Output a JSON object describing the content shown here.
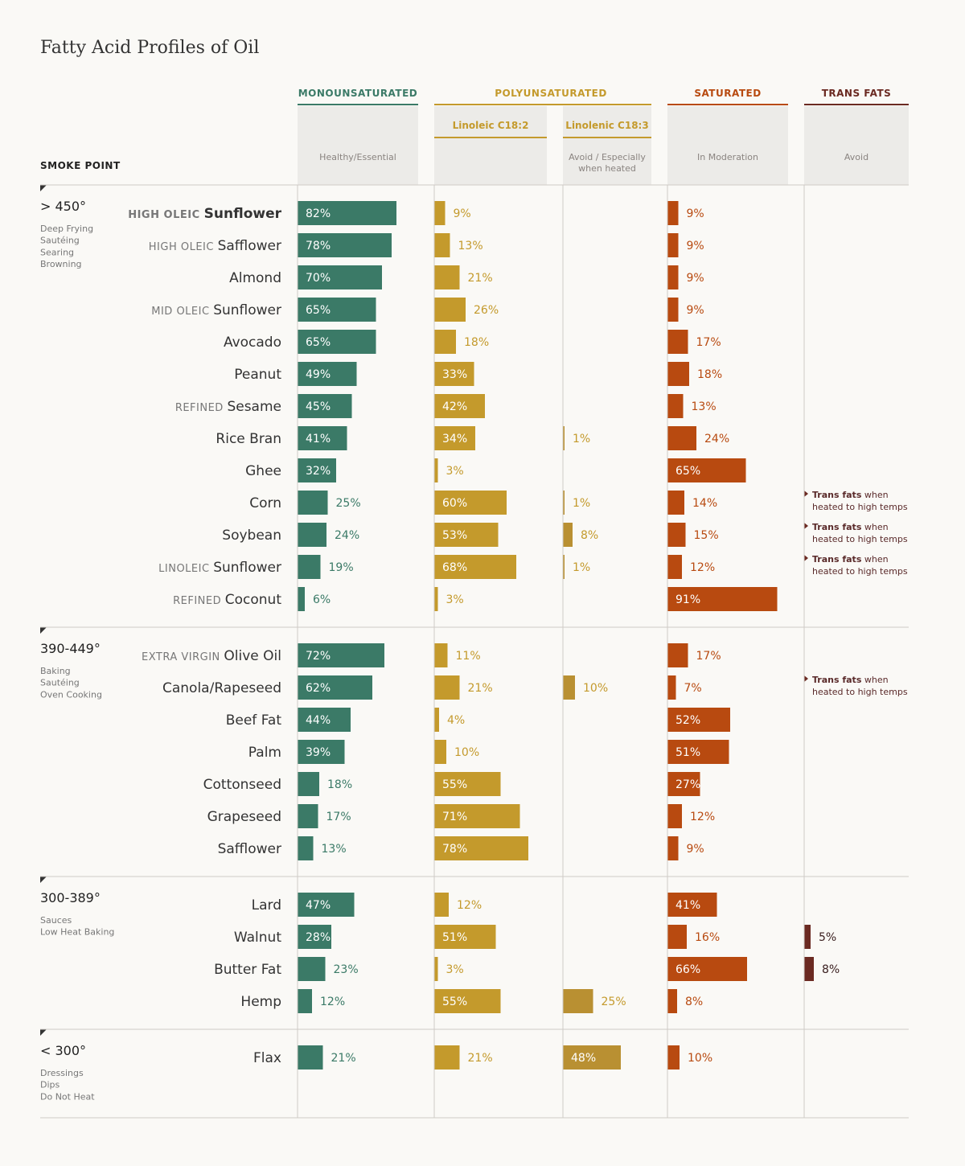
{
  "title": "Fatty Acid Profiles of Oil",
  "smoke_point_label": "SMOKE POINT",
  "columns": [
    {
      "key": "mono",
      "label": "MONOUNSATURATED",
      "color": "#3b7a67",
      "note": "Healthy/Essential"
    },
    {
      "key": "poly",
      "label": "POLYUNSATURATED",
      "color": "#c49a2c"
    },
    {
      "key": "sat",
      "label": "SATURATED",
      "color": "#b84a10",
      "note": "In Moderation"
    },
    {
      "key": "trans",
      "label": "TRANS FATS",
      "color": "#6b2a22",
      "note": "Avoid"
    }
  ],
  "subcolumns": [
    {
      "key": "linoleic",
      "label": "Linoleic C18:2",
      "color": "#c49a2c",
      "note": ""
    },
    {
      "key": "linolenic",
      "label": "Linolenic C18:3",
      "color": "#b99032",
      "note": "Avoid / Especially when heated"
    }
  ],
  "trans_note": {
    "bold": "Trans fats",
    "rest": " when",
    "line2": "heated to high temps"
  },
  "colors": {
    "mono": "#3b7a67",
    "linoleic": "#c49a2c",
    "linolenic": "#b99032",
    "sat": "#b84a10",
    "trans": "#6b2a22",
    "text_mono": "#3b7a67",
    "text_poly": "#c49a2c",
    "text_sat": "#b84a10"
  },
  "chart_data": {
    "type": "bar",
    "title": "Fatty Acid Profiles of Oil",
    "units": "%",
    "groups": [
      {
        "heading": "> 450°",
        "uses": [
          "Deep Frying",
          "Sautéing",
          "Searing",
          "Browning"
        ],
        "oils": [
          {
            "qualifier": "HIGH OLEIC",
            "name": "Sunflower",
            "bold": true,
            "mono": 82,
            "linoleic": 9,
            "linolenic": null,
            "sat": 9,
            "trans": null,
            "trans_note": false
          },
          {
            "qualifier": "HIGH OLEIC",
            "name": "Safflower",
            "mono": 78,
            "linoleic": 13,
            "linolenic": null,
            "sat": 9,
            "trans": null,
            "trans_note": false
          },
          {
            "qualifier": "",
            "name": "Almond",
            "mono": 70,
            "linoleic": 21,
            "linolenic": null,
            "sat": 9,
            "trans": null,
            "trans_note": false
          },
          {
            "qualifier": "MID OLEIC",
            "name": "Sunflower",
            "mono": 65,
            "linoleic": 26,
            "linolenic": null,
            "sat": 9,
            "trans": null,
            "trans_note": false
          },
          {
            "qualifier": "",
            "name": "Avocado",
            "mono": 65,
            "linoleic": 18,
            "linolenic": null,
            "sat": 17,
            "trans": null,
            "trans_note": false
          },
          {
            "qualifier": "",
            "name": "Peanut",
            "mono": 49,
            "linoleic": 33,
            "linolenic": null,
            "sat": 18,
            "trans": null,
            "trans_note": false
          },
          {
            "qualifier": "REFINED",
            "name": "Sesame",
            "mono": 45,
            "linoleic": 42,
            "linolenic": null,
            "sat": 13,
            "trans": null,
            "trans_note": false
          },
          {
            "qualifier": "",
            "name": "Rice Bran",
            "mono": 41,
            "linoleic": 34,
            "linolenic": 1,
            "sat": 24,
            "trans": null,
            "trans_note": false
          },
          {
            "qualifier": "",
            "name": "Ghee",
            "mono": 32,
            "linoleic": 3,
            "linolenic": null,
            "sat": 65,
            "trans": null,
            "trans_note": false
          },
          {
            "qualifier": "",
            "name": "Corn",
            "mono": 25,
            "linoleic": 60,
            "linolenic": 1,
            "sat": 14,
            "trans": null,
            "trans_note": true
          },
          {
            "qualifier": "",
            "name": "Soybean",
            "mono": 24,
            "linoleic": 53,
            "linolenic": 8,
            "sat": 15,
            "trans": null,
            "trans_note": true
          },
          {
            "qualifier": "LINOLEIC",
            "name": "Sunflower",
            "mono": 19,
            "linoleic": 68,
            "linolenic": 1,
            "sat": 12,
            "trans": null,
            "trans_note": true
          },
          {
            "qualifier": "REFINED",
            "name": "Coconut",
            "mono": 6,
            "linoleic": 3,
            "linolenic": null,
            "sat": 91,
            "trans": null,
            "trans_note": false
          }
        ]
      },
      {
        "heading": "390-449°",
        "uses": [
          "Baking",
          "Sautéing",
          "Oven Cooking"
        ],
        "oils": [
          {
            "qualifier": "EXTRA VIRGIN",
            "name": "Olive Oil",
            "mono": 72,
            "linoleic": 11,
            "linolenic": null,
            "sat": 17,
            "trans": null,
            "trans_note": false
          },
          {
            "qualifier": "",
            "name": "Canola/Rapeseed",
            "mono": 62,
            "linoleic": 21,
            "linolenic": 10,
            "sat": 7,
            "trans": null,
            "trans_note": true
          },
          {
            "qualifier": "",
            "name": "Beef Fat",
            "mono": 44,
            "linoleic": 4,
            "linolenic": null,
            "sat": 52,
            "trans": null,
            "trans_note": false
          },
          {
            "qualifier": "",
            "name": "Palm",
            "mono": 39,
            "linoleic": 10,
            "linolenic": null,
            "sat": 51,
            "trans": null,
            "trans_note": false
          },
          {
            "qualifier": "",
            "name": "Cottonseed",
            "mono": 18,
            "linoleic": 55,
            "linolenic": null,
            "sat": 27,
            "trans": null,
            "trans_note": false
          },
          {
            "qualifier": "",
            "name": "Grapeseed",
            "mono": 17,
            "linoleic": 71,
            "linolenic": null,
            "sat": 12,
            "trans": null,
            "trans_note": false
          },
          {
            "qualifier": "",
            "name": "Safflower",
            "mono": 13,
            "linoleic": 78,
            "linolenic": null,
            "sat": 9,
            "trans": null,
            "trans_note": false
          }
        ]
      },
      {
        "heading": "300-389°",
        "uses": [
          "Sauces",
          "Low Heat Baking"
        ],
        "oils": [
          {
            "qualifier": "",
            "name": "Lard",
            "mono": 47,
            "linoleic": 12,
            "linolenic": null,
            "sat": 41,
            "trans": null,
            "trans_note": false
          },
          {
            "qualifier": "",
            "name": "Walnut",
            "mono": 28,
            "linoleic": 51,
            "linolenic": null,
            "sat": 16,
            "trans": 5,
            "trans_note": false
          },
          {
            "qualifier": "",
            "name": "Butter Fat",
            "mono": 23,
            "linoleic": 3,
            "linolenic": null,
            "sat": 66,
            "trans": 8,
            "trans_note": false
          },
          {
            "qualifier": "",
            "name": "Hemp",
            "mono": 12,
            "linoleic": 55,
            "linolenic": 25,
            "sat": 8,
            "trans": null,
            "trans_note": false
          }
        ]
      },
      {
        "heading": "< 300°",
        "uses": [
          "Dressings",
          "Dips",
          "Do Not Heat"
        ],
        "oils": [
          {
            "qualifier": "",
            "name": "Flax",
            "mono": 21,
            "linoleic": 21,
            "linolenic": 48,
            "sat": 10,
            "trans": null,
            "trans_note": false
          }
        ]
      }
    ]
  }
}
